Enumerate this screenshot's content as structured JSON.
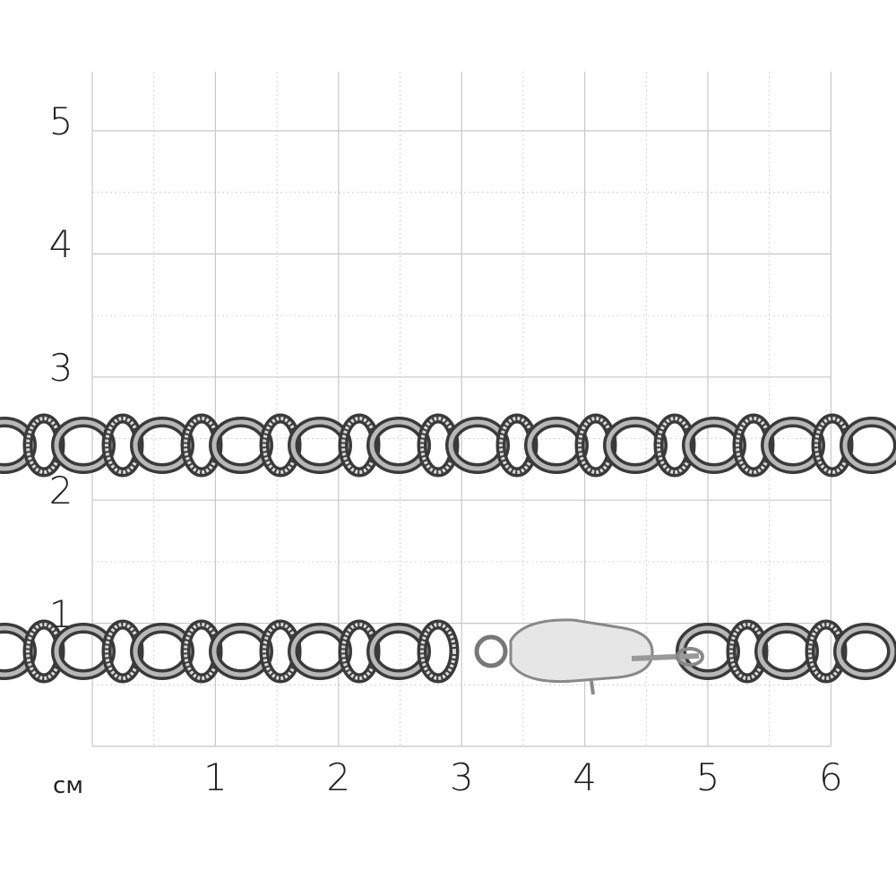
{
  "scale": {
    "unit": "см",
    "x_labels": [
      "1",
      "2",
      "3",
      "4",
      "5",
      "6"
    ],
    "y_labels": [
      "1",
      "2",
      "3",
      "4",
      "5"
    ],
    "grid": true,
    "grid_color": "#c8c8c8"
  },
  "product": {
    "type": "chain-with-lobster-clasp",
    "metal_color": "#b8b8b8",
    "oxidized_color": "#3a3a3a"
  }
}
